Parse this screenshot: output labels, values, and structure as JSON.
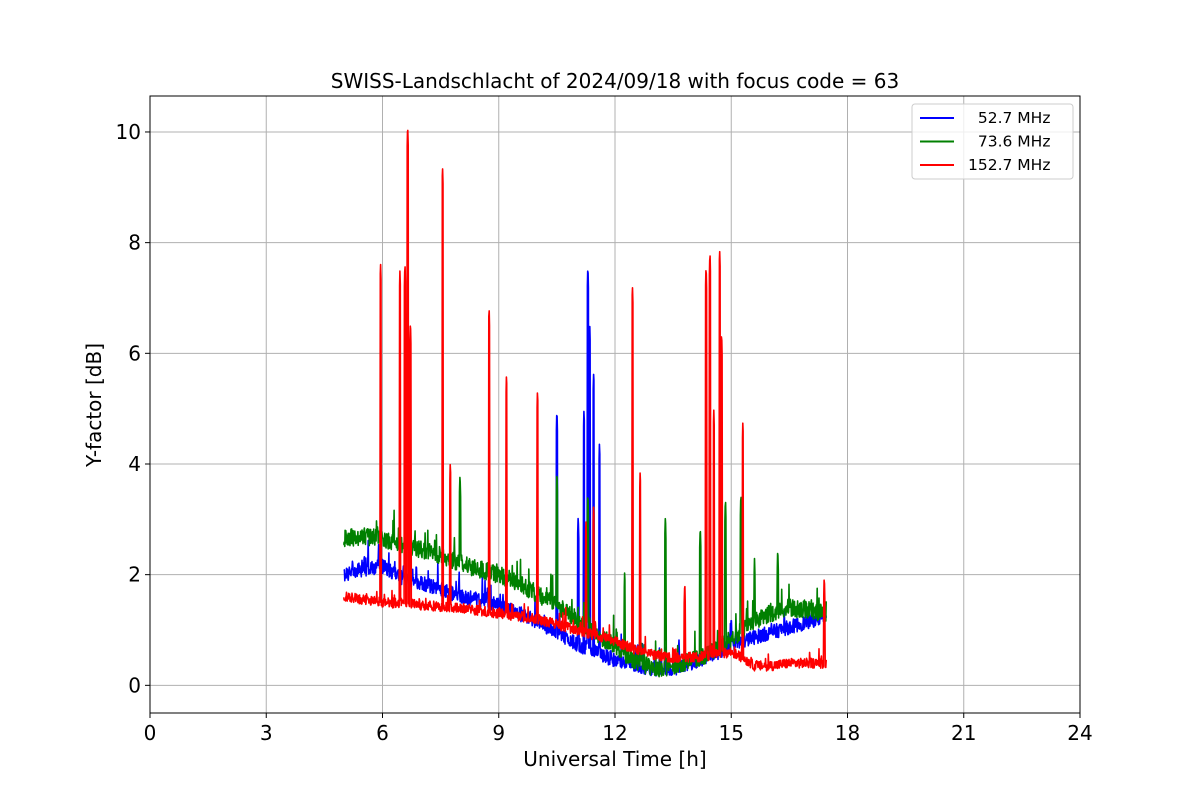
{
  "chart_data": {
    "type": "line",
    "title": "SWISS-Landschlacht of 2024/09/18 with focus code = 63",
    "xlabel": "Universal Time [h]",
    "ylabel": "Y-factor [dB]",
    "xlim": [
      0,
      24
    ],
    "ylim": [
      -0.5,
      10.65
    ],
    "xticks": [
      0,
      3,
      6,
      9,
      12,
      15,
      18,
      21,
      24
    ],
    "yticks": [
      0,
      2,
      4,
      6,
      8,
      10
    ],
    "grid": true,
    "legend_position": "top-right",
    "series": [
      {
        "name": "  52.7 MHz",
        "color": "#0000ff",
        "trend": [
          [
            5.0,
            2.0
          ],
          [
            5.5,
            2.1
          ],
          [
            6.0,
            2.15
          ],
          [
            6.5,
            1.95
          ],
          [
            7.0,
            1.85
          ],
          [
            7.5,
            1.75
          ],
          [
            8.0,
            1.6
          ],
          [
            8.5,
            1.55
          ],
          [
            9.0,
            1.45
          ],
          [
            9.5,
            1.3
          ],
          [
            10.0,
            1.15
          ],
          [
            10.5,
            0.95
          ],
          [
            11.0,
            0.75
          ],
          [
            11.5,
            0.6
          ],
          [
            12.0,
            0.45
          ],
          [
            12.5,
            0.35
          ],
          [
            13.0,
            0.3
          ],
          [
            13.5,
            0.3
          ],
          [
            14.0,
            0.4
          ],
          [
            14.5,
            0.55
          ],
          [
            15.0,
            0.7
          ],
          [
            15.5,
            0.85
          ],
          [
            16.0,
            0.95
          ],
          [
            16.5,
            1.05
          ],
          [
            17.0,
            1.15
          ],
          [
            17.45,
            1.25
          ]
        ],
        "noise": 0.13,
        "peaks": [
          [
            5.9,
            2.6
          ],
          [
            10.5,
            5.0
          ],
          [
            11.05,
            3.1
          ],
          [
            11.2,
            5.0
          ],
          [
            11.3,
            7.6
          ],
          [
            11.35,
            6.5
          ],
          [
            11.45,
            5.7
          ],
          [
            11.6,
            4.4
          ],
          [
            13.65,
            0.9
          ],
          [
            15.0,
            1.3
          ]
        ]
      },
      {
        "name": "  73.6 MHz",
        "color": "#008000",
        "trend": [
          [
            5.0,
            2.65
          ],
          [
            5.5,
            2.7
          ],
          [
            6.0,
            2.65
          ],
          [
            6.5,
            2.55
          ],
          [
            7.0,
            2.45
          ],
          [
            7.5,
            2.35
          ],
          [
            8.0,
            2.2
          ],
          [
            8.5,
            2.1
          ],
          [
            9.0,
            2.0
          ],
          [
            9.5,
            1.85
          ],
          [
            10.0,
            1.65
          ],
          [
            10.5,
            1.45
          ],
          [
            11.0,
            1.2
          ],
          [
            11.5,
            0.95
          ],
          [
            12.0,
            0.7
          ],
          [
            12.5,
            0.45
          ],
          [
            13.0,
            0.3
          ],
          [
            13.5,
            0.35
          ],
          [
            14.0,
            0.45
          ],
          [
            14.5,
            0.6
          ],
          [
            15.0,
            0.85
          ],
          [
            15.5,
            1.1
          ],
          [
            16.0,
            1.3
          ],
          [
            16.5,
            1.4
          ],
          [
            17.0,
            1.35
          ],
          [
            17.45,
            1.3
          ]
        ],
        "noise": 0.16,
        "peaks": [
          [
            8.0,
            3.85
          ],
          [
            10.5,
            3.9
          ],
          [
            11.3,
            3.5
          ],
          [
            12.25,
            2.1
          ],
          [
            13.3,
            3.1
          ],
          [
            14.2,
            2.9
          ],
          [
            14.85,
            3.4
          ],
          [
            15.25,
            3.5
          ],
          [
            15.6,
            2.3
          ],
          [
            16.2,
            2.5
          ]
        ]
      },
      {
        "name": "152.7 MHz",
        "color": "#ff0000",
        "trend": [
          [
            5.0,
            1.6
          ],
          [
            5.5,
            1.55
          ],
          [
            6.0,
            1.5
          ],
          [
            6.5,
            1.48
          ],
          [
            7.0,
            1.45
          ],
          [
            7.5,
            1.42
          ],
          [
            8.0,
            1.4
          ],
          [
            8.5,
            1.35
          ],
          [
            9.0,
            1.3
          ],
          [
            9.5,
            1.25
          ],
          [
            10.0,
            1.2
          ],
          [
            10.5,
            1.1
          ],
          [
            11.0,
            1.0
          ],
          [
            11.5,
            0.9
          ],
          [
            12.0,
            0.8
          ],
          [
            12.5,
            0.65
          ],
          [
            13.0,
            0.55
          ],
          [
            13.5,
            0.5
          ],
          [
            14.0,
            0.5
          ],
          [
            14.5,
            0.55
          ],
          [
            15.0,
            0.6
          ],
          [
            15.3,
            0.5
          ],
          [
            15.6,
            0.35
          ],
          [
            16.0,
            0.35
          ],
          [
            16.5,
            0.4
          ],
          [
            17.0,
            0.4
          ],
          [
            17.45,
            0.4
          ]
        ],
        "noise": 0.09,
        "peaks": [
          [
            5.95,
            7.65
          ],
          [
            6.45,
            7.5
          ],
          [
            6.58,
            7.65
          ],
          [
            6.65,
            10.15
          ],
          [
            6.72,
            6.6
          ],
          [
            7.55,
            9.4
          ],
          [
            7.75,
            4.05
          ],
          [
            8.75,
            6.85
          ],
          [
            9.2,
            5.65
          ],
          [
            10.0,
            5.35
          ],
          [
            11.25,
            3.0
          ],
          [
            11.45,
            3.3
          ],
          [
            12.45,
            7.25
          ],
          [
            12.65,
            3.9
          ],
          [
            13.8,
            1.9
          ],
          [
            14.35,
            7.6
          ],
          [
            14.45,
            7.85
          ],
          [
            14.55,
            5.0
          ],
          [
            14.7,
            7.9
          ],
          [
            14.75,
            6.4
          ],
          [
            15.3,
            4.8
          ],
          [
            17.4,
            2.0
          ]
        ]
      }
    ]
  }
}
